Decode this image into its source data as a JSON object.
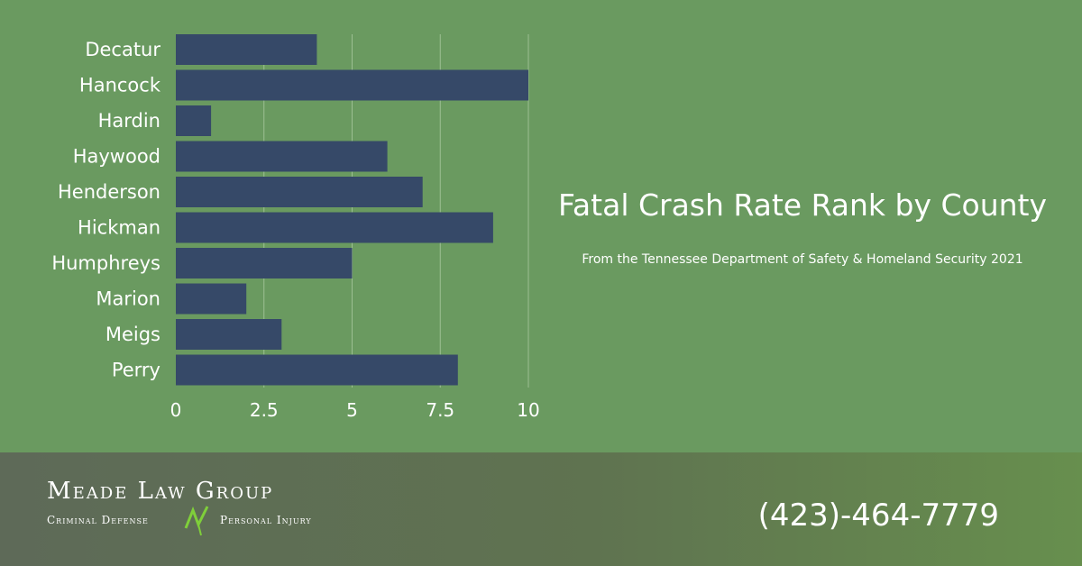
{
  "chart_data": {
    "type": "bar",
    "orientation": "horizontal",
    "categories": [
      "Decatur",
      "Hancock",
      "Hardin",
      "Haywood",
      "Henderson",
      "Hickman",
      "Humphreys",
      "Marion",
      "Meigs",
      "Perry"
    ],
    "values": [
      4,
      10,
      1,
      6,
      7,
      9,
      5,
      2,
      3,
      8
    ],
    "title": "Fatal Crash Rate Rank by County",
    "subtitle": "From the Tennessee Department of Safety & Homeland Security 2021",
    "xlim": [
      0,
      10
    ],
    "xticks": [
      "0",
      "2.5",
      "5",
      "7.5",
      "10"
    ],
    "grid": "vertical",
    "legend": "none",
    "bar_color": "#364968"
  },
  "footer": {
    "logo_name": "Meade Law Group",
    "logo_tag_left": "Criminal Defense",
    "logo_tag_right": "Personal Injury",
    "phone": "(423)-464-7779"
  },
  "colors": {
    "background": "#6a9a60",
    "gridline": "#9cbf92",
    "logo_accent": "#7fcf3a"
  }
}
